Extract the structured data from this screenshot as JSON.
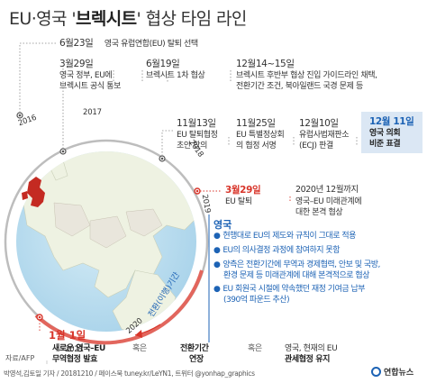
{
  "title": {
    "prefix": "EU·영국 '",
    "highlight": "브렉시트",
    "suffix": "' 협상 타임 라인"
  },
  "years": [
    "2016",
    "2017",
    "2018",
    "2019",
    "2020",
    "2021"
  ],
  "transition_label": "전환(이행)기간",
  "events": [
    {
      "date": "6월23일",
      "text": [
        "영국 유럽연합(EU) 탈퇴 선택"
      ]
    },
    {
      "date": "3월29일",
      "text": [
        "영국 정부, EU에",
        "브렉시트 공식 통보"
      ]
    },
    {
      "date": "6월19일",
      "text": [
        "브렉시트 1차 협상"
      ]
    },
    {
      "date": "12월14~15일",
      "text": [
        "브렉시트 후반부 협상 진입 가이드라인 채택,",
        "전환기간 조건, 북아일랜드 국경 문제 등"
      ]
    },
    {
      "date": "11월13일",
      "text": [
        "EU 탈퇴협정",
        "초안 합의"
      ]
    },
    {
      "date": "11월25일",
      "text": [
        "EU 특별정상회",
        "의 협정 서명"
      ]
    },
    {
      "date": "12월10일",
      "text": [
        "유럽사법재판소",
        "(ECJ) 판결"
      ]
    },
    {
      "date": "12월 11일",
      "text": [
        "영국 의회",
        "비준 표결"
      ]
    },
    {
      "date": "3월29일",
      "text": [
        "EU 탈퇴"
      ]
    },
    {
      "date": "2020년 12월까지",
      "text": [
        "영국–EU 미래관계에",
        "대한 본격 협상"
      ]
    }
  ],
  "uk_section": {
    "title": "영국",
    "bullets": [
      [
        "현행대로 EU의 제도와 규칙이 그대로 적용"
      ],
      [
        "EU의 의사결정 과정에 참여하지 못함"
      ],
      [
        "양측은 전환기간에 무역과 경제협력, 안보 및 국방,",
        "환경 문제 등 미래관계에 대해 본격적으로 협상"
      ],
      [
        "EU 회원국 시절에 약속했던 재정 기여금 납부",
        "(390억 파운드 추산)"
      ]
    ]
  },
  "final": {
    "date": "1월 1일",
    "options": [
      {
        "text": [
          "새로운 영국–EU",
          "무역협정 발효"
        ],
        "bold": true
      },
      {
        "text": [
          "혹은"
        ],
        "bold": false
      },
      {
        "text": [
          "전환기간",
          "연장"
        ],
        "bold": true
      },
      {
        "text": [
          "혹은"
        ],
        "bold": false
      },
      {
        "text": [
          "영국, 현재의 EU",
          "관세협정 유지"
        ],
        "bold": "mixed"
      }
    ]
  },
  "source": "자료/AFP",
  "footer": "박영석,김토일 기자 / 20181210 / 페이스북 tuney.kr/LeYN1, 트위터 @yonhap_graphics",
  "logo": "연합뉴스",
  "colors": {
    "accent_red": "#d8352a",
    "accent_blue": "#1d63b5",
    "highlight_bg": "#dbe7f4"
  }
}
